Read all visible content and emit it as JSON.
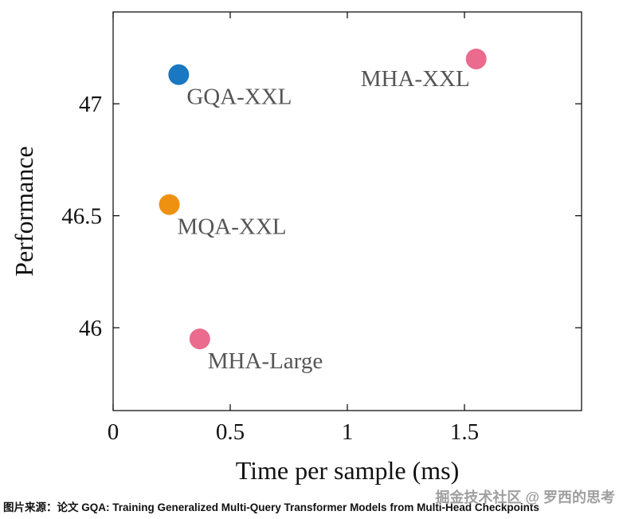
{
  "chart_data": {
    "type": "scatter",
    "title": "",
    "xlabel": "Time per sample (ms)",
    "ylabel": "Performance",
    "xlim": [
      0,
      2.0
    ],
    "ylim": [
      45.63,
      47.41
    ],
    "x_ticks": [
      0,
      0.5,
      1,
      1.5
    ],
    "x_tick_labels": [
      "0",
      "0.5",
      "1",
      "1.5"
    ],
    "y_ticks": [
      46,
      46.5,
      47
    ],
    "y_tick_labels": [
      "46",
      "46.5",
      "47"
    ],
    "grid": false,
    "legend": "none",
    "marker_radius": 13,
    "label_color": "#555555",
    "points": [
      {
        "label": "GQA-XXL",
        "x": 0.28,
        "y": 47.13,
        "color": "#1a77c2",
        "label_side": "below-right"
      },
      {
        "label": "MHA-XXL",
        "x": 1.55,
        "y": 47.2,
        "color": "#ea6b8e",
        "label_side": "below-left"
      },
      {
        "label": "MQA-XXL",
        "x": 0.24,
        "y": 46.55,
        "color": "#ee9110",
        "label_side": "below-right"
      },
      {
        "label": "MHA-Large",
        "x": 0.37,
        "y": 45.95,
        "color": "#ea6b8e",
        "label_side": "below-right"
      }
    ]
  },
  "caption": {
    "text": "图片来源：论文 GQA: Training Generalized Multi-Query Transformer Models from Multi-Head Checkpoints"
  },
  "watermark": {
    "text": "掘金技术社区 @ 罗西的思考"
  }
}
